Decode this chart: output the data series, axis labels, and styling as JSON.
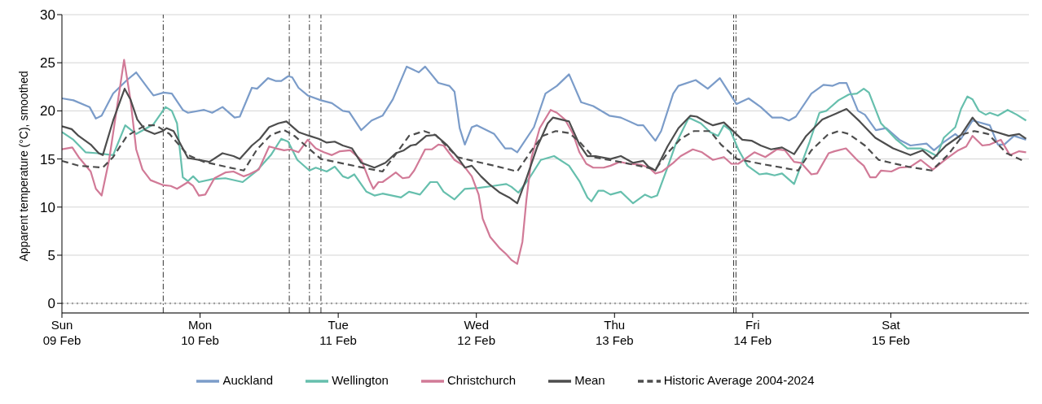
{
  "chart_data": {
    "type": "line",
    "ylabel": "Apparent temperature (°C), smoothed",
    "xlim": [
      "--02-09T00:00",
      "--02-16T00:00"
    ],
    "xticks": [
      {
        "value": "--02-09T00:00",
        "label": "Sun\n09 Feb"
      },
      {
        "value": "--02-10T00:00",
        "label": "Mon\n10 Feb"
      },
      {
        "value": "--02-11T00:00",
        "label": "Tue\n11 Feb"
      },
      {
        "value": "--02-12T00:00",
        "label": "Wed\n12 Feb"
      },
      {
        "value": "--02-13T00:00",
        "label": "Thu\n13 Feb"
      },
      {
        "value": "--02-14T00:00",
        "label": "Fri\n14 Feb"
      },
      {
        "value": "--02-15T00:00",
        "label": "Sat\n15 Feb"
      }
    ],
    "ylim": [
      -1,
      30
    ],
    "yticks": [
      0,
      5,
      10,
      15,
      20,
      25,
      30
    ],
    "grid": "y",
    "legend": "bottom",
    "marker": "none",
    "line_style": "solid",
    "ref_lines": [
      {
        "axis": "x",
        "value": "--02-09T17:36",
        "color": "#333333",
        "line_style": "dashed"
      },
      {
        "axis": "x",
        "value": "--02-10T15:30",
        "color": "#333333",
        "line_style": "dashed"
      },
      {
        "axis": "x",
        "value": "--02-10T19:00",
        "color": "#333333",
        "line_style": "dashed"
      },
      {
        "axis": "x",
        "value": "--02-10T21:00",
        "color": "#333333",
        "line_style": "dashed"
      },
      {
        "axis": "x",
        "value": "--02-13T20:42",
        "color": "#333333",
        "line_style": "dashed"
      },
      {
        "axis": "x",
        "value": "--02-13T21:06",
        "color": "#333333",
        "line_style": "dashed"
      },
      {
        "axis": "y",
        "value": 0,
        "color": "#999999",
        "line_style": "dotted"
      }
    ],
    "series": [
      {
        "name": "Auckland",
        "color": "#7b9cc9",
        "x": [
          "--02-09T00:00",
          "--02-09T02:00",
          "--02-09T04:48",
          "--02-09T05:54",
          "--02-09T06:54",
          "--02-09T08:54",
          "--02-09T11:18",
          "--02-09T12:54",
          "--02-09T15:00",
          "--02-09T15:54",
          "--02-09T17:42",
          "--02-09T19:06",
          "--02-09T21:00",
          "--02-09T21:54",
          "--02-10T00:42",
          "--02-10T02:06",
          "--02-10T03:54",
          "--02-10T06:00",
          "--02-10T06:54",
          "--02-10T09:00",
          "--02-10T09:54",
          "--02-10T11:48",
          "--02-10T13:12",
          "--02-10T14:06",
          "--02-10T15:18",
          "--02-10T16:00",
          "--02-10T17:06",
          "--02-10T18:42",
          "--02-10T21:00",
          "--02-10T22:54",
          "--02-11T00:48",
          "--02-11T01:54",
          "--02-11T04:00",
          "--02-11T05:48",
          "--02-11T07:42",
          "--02-11T09:30",
          "--02-11T11:54",
          "--02-11T14:00",
          "--02-11T15:06",
          "--02-11T17:24",
          "--02-11T19:18",
          "--02-11T20:12",
          "--02-11T21:06",
          "--02-11T22:00",
          "--02-11T23:12",
          "--02-12T00:06",
          "--02-12T03:06",
          "--02-12T05:00",
          "--02-12T06:06",
          "--02-12T07:06",
          "--02-12T10:00",
          "--02-12T12:00",
          "--02-12T14:00",
          "--02-12T16:06",
          "--02-12T18:12",
          "--02-12T20:18",
          "--02-12T23:06",
          "--02-13T01:06",
          "--02-13T04:06",
          "--02-13T05:00",
          "--02-13T07:06",
          "--02-13T08:06",
          "--02-13T10:12",
          "--02-13T11:06",
          "--02-13T14:06",
          "--02-13T16:12",
          "--02-13T18:18",
          "--02-13T21:12",
          "--02-13T23:18",
          "--02-14T01:24",
          "--02-14T03:24",
          "--02-14T05:06",
          "--02-14T06:18",
          "--02-14T07:30",
          "--02-14T10:12",
          "--02-14T12:18",
          "--02-14T13:54",
          "--02-14T15:06",
          "--02-14T16:18",
          "--02-14T18:18",
          "--02-14T19:30",
          "--02-14T21:24",
          "--02-14T23:12",
          "--02-15T01:30",
          "--02-15T03:24",
          "--02-15T06:12",
          "--02-15T07:30",
          "--02-15T09:06",
          "--02-15T11:12",
          "--02-15T12:12",
          "--02-15T14:12",
          "--02-15T17:12",
          "--02-15T18:36",
          "--02-15T19:42",
          "--02-15T21:24",
          "--02-15T23:30"
        ],
        "values": [
          21.3,
          21.1,
          20.4,
          19.2,
          19.5,
          21.8,
          23.2,
          24.0,
          22.3,
          21.6,
          21.9,
          21.8,
          20.1,
          19.8,
          20.1,
          19.8,
          20.4,
          19.3,
          19.4,
          22.4,
          22.3,
          23.4,
          23.1,
          23.1,
          23.6,
          23.5,
          22.4,
          21.6,
          21.1,
          20.8,
          20.0,
          19.9,
          18.0,
          19.0,
          19.5,
          21.2,
          24.6,
          24.0,
          24.6,
          22.9,
          22.6,
          22.0,
          18.2,
          16.5,
          18.3,
          18.5,
          17.6,
          16.1,
          16.1,
          15.7,
          18.3,
          21.8,
          22.6,
          23.8,
          20.9,
          20.5,
          19.5,
          19.3,
          18.5,
          18.5,
          16.9,
          17.9,
          21.8,
          22.6,
          23.2,
          22.3,
          23.4,
          20.7,
          21.3,
          20.4,
          19.3,
          19.3,
          19.0,
          19.4,
          21.8,
          22.7,
          22.6,
          22.9,
          22.9,
          20.0,
          19.6,
          18.0,
          18.2,
          17.0,
          16.4,
          16.6,
          15.9,
          16.7,
          17.6,
          17.1,
          19.0,
          18.5,
          16.5,
          16.5,
          17.4,
          17.0
        ]
      },
      {
        "name": "Wellington",
        "color": "#66bfad",
        "x": [
          "--02-09T00:00",
          "--02-09T02:00",
          "--02-09T04:06",
          "--02-09T06:12",
          "--02-09T08:54",
          "--02-09T11:00",
          "--02-09T12:54",
          "--02-09T15:54",
          "--02-09T18:00",
          "--02-09T19:06",
          "--02-09T20:00",
          "--02-09T21:00",
          "--02-09T21:54",
          "--02-09T22:48",
          "--02-09T23:48",
          "--02-10T02:06",
          "--02-10T04:24",
          "--02-10T07:24",
          "--02-10T09:54",
          "--02-10T12:18",
          "--02-10T14:06",
          "--02-10T15:18",
          "--02-10T16:54",
          "--02-10T19:00",
          "--02-10T20:06",
          "--02-10T22:00",
          "--02-10T23:24",
          "--02-11T00:48",
          "--02-11T01:42",
          "--02-11T02:48",
          "--02-11T04:54",
          "--02-11T06:18",
          "--02-11T07:42",
          "--02-11T10:54",
          "--02-11T12:18",
          "--02-11T14:12",
          "--02-11T16:00",
          "--02-11T17:12",
          "--02-11T18:18",
          "--02-11T20:12",
          "--02-11T22:00",
          "--02-12T00:24",
          "--02-12T02:54",
          "--02-12T05:12",
          "--02-12T06:06",
          "--02-12T07:18",
          "--02-12T09:12",
          "--02-12T11:12",
          "--02-12T13:30",
          "--02-12T16:06",
          "--02-12T17:54",
          "--02-12T19:18",
          "--02-12T20:00",
          "--02-12T21:12",
          "--02-12T22:06",
          "--02-12T23:18",
          "--02-13T01:06",
          "--02-13T03:12",
          "--02-13T05:18",
          "--02-13T06:24",
          "--02-13T07:24",
          "--02-13T09:12",
          "--02-13T10:36",
          "--02-13T12:54",
          "--02-13T15:00",
          "--02-13T16:36",
          "--02-13T18:00",
          "--02-13T19:00",
          "--02-13T20:06",
          "--02-13T21:30",
          "--02-13T23:06",
          "--02-14T01:12",
          "--02-14T02:24",
          "--02-14T03:48",
          "--02-14T05:06",
          "--02-14T07:12",
          "--02-14T09:54",
          "--02-14T11:36",
          "--02-14T12:48",
          "--02-14T14:54",
          "--02-14T16:42",
          "--02-14T18:06",
          "--02-14T19:18",
          "--02-14T20:12",
          "--02-14T22:18",
          "--02-15T01:00",
          "--02-15T02:54",
          "--02-15T05:12",
          "--02-15T06:12",
          "--02-15T08:00",
          "--02-15T09:12",
          "--02-15T11:12",
          "--02-15T12:12",
          "--02-15T13:18",
          "--02-15T14:12",
          "--02-15T15:18",
          "--02-15T16:30",
          "--02-15T17:12",
          "--02-15T18:36",
          "--02-15T20:18",
          "--02-15T21:54",
          "--02-15T23:30"
        ],
        "values": [
          17.8,
          17.0,
          15.7,
          15.6,
          15.4,
          18.5,
          17.6,
          18.6,
          20.4,
          20.0,
          18.7,
          13.1,
          12.7,
          13.2,
          12.6,
          12.9,
          13.0,
          12.6,
          13.8,
          15.4,
          17.1,
          16.8,
          14.9,
          13.8,
          14.1,
          13.7,
          14.2,
          13.2,
          13.0,
          13.4,
          11.6,
          11.2,
          11.4,
          11.0,
          11.6,
          11.3,
          12.6,
          12.6,
          11.6,
          10.8,
          11.9,
          12.0,
          12.2,
          12.4,
          12.1,
          11.5,
          13.0,
          14.9,
          15.3,
          14.3,
          12.7,
          11.0,
          10.6,
          11.7,
          11.7,
          11.3,
          11.6,
          10.4,
          11.3,
          11.0,
          11.2,
          14.1,
          16.5,
          19.3,
          18.7,
          17.8,
          17.4,
          18.5,
          18.0,
          16.0,
          14.3,
          13.4,
          13.5,
          13.3,
          13.5,
          12.4,
          16.8,
          19.8,
          20.0,
          21.1,
          21.7,
          21.8,
          22.3,
          21.9,
          18.7,
          17.0,
          16.1,
          16.1,
          15.9,
          15.3,
          17.2,
          18.3,
          20.2,
          21.5,
          21.2,
          20.0,
          19.6,
          19.8,
          19.5,
          20.1,
          19.6,
          19.0
        ]
      },
      {
        "name": "Christchurch",
        "color": "#d17a97",
        "x": [
          "--02-09T00:00",
          "--02-09T01:48",
          "--02-09T02:54",
          "--02-09T05:00",
          "--02-09T05:54",
          "--02-09T06:54",
          "--02-09T08:12",
          "--02-09T10:48",
          "--02-09T11:54",
          "--02-09T12:54",
          "--02-09T14:00",
          "--02-09T15:24",
          "--02-09T17:30",
          "--02-09T18:54",
          "--02-09T20:00",
          "--02-09T21:54",
          "--02-09T22:48",
          "--02-09T23:48",
          "--02-10T00:54",
          "--02-10T02:30",
          "--02-10T04:24",
          "--02-10T05:48",
          "--02-10T07:36",
          "--02-10T08:30",
          "--02-10T10:12",
          "--02-10T12:00",
          "--02-10T13:12",
          "--02-10T14:36",
          "--02-10T15:42",
          "--02-10T17:06",
          "--02-10T18:42",
          "--02-10T20:06",
          "--02-10T21:30",
          "--02-10T22:54",
          "--02-11T00:18",
          "--02-11T02:06",
          "--02-11T04:00",
          "--02-11T05:24",
          "--02-11T06:06",
          "--02-11T07:00",
          "--02-11T07:42",
          "--02-11T09:06",
          "--02-11T10:00",
          "--02-11T11:12",
          "--02-11T12:18",
          "--02-11T13:12",
          "--02-11T15:06",
          "--02-11T16:18",
          "--02-11T17:24",
          "--02-11T18:18",
          "--02-11T20:12",
          "--02-11T21:48",
          "--02-11T23:12",
          "--02-12T00:24",
          "--02-12T01:06",
          "--02-12T02:24",
          "--02-12T04:06",
          "--02-12T05:12",
          "--02-12T06:06",
          "--02-12T07:06",
          "--02-12T08:00",
          "--02-12T08:42",
          "--02-12T09:36",
          "--02-12T11:00",
          "--02-12T12:54",
          "--02-12T14:00",
          "--02-12T15:24",
          "--02-12T16:48",
          "--02-12T17:54",
          "--02-12T19:06",
          "--02-12T20:18",
          "--02-12T22:06",
          "--02-12T23:18",
          "--02-13T00:54",
          "--02-13T02:30",
          "--02-13T04:36",
          "--02-13T06:00",
          "--02-13T07:06",
          "--02-13T08:18",
          "--02-13T10:12",
          "--02-13T11:30",
          "--02-13T13:36",
          "--02-13T15:12",
          "--02-13T17:06",
          "--02-13T19:00",
          "--02-13T20:18",
          "--02-13T21:30",
          "--02-14T00:18",
          "--02-14T02:12",
          "--02-14T04:12",
          "--02-14T05:36",
          "--02-14T07:12",
          "--02-14T08:24",
          "--02-14T10:12",
          "--02-14T11:12",
          "--02-14T13:12",
          "--02-14T14:12",
          "--02-14T16:12",
          "--02-14T18:18",
          "--02-14T19:18",
          "--02-14T20:24",
          "--02-14T21:24",
          "--02-14T22:18",
          "--02-15T00:06",
          "--02-15T01:30",
          "--02-15T03:24",
          "--02-15T05:12",
          "--02-15T07:18",
          "--02-15T09:36",
          "--02-15T11:42",
          "--02-15T13:06",
          "--02-15T14:12",
          "--02-15T15:54",
          "--02-15T17:12",
          "--02-15T19:06",
          "--02-15T20:42",
          "--02-15T22:18",
          "--02-15T23:30"
        ],
        "values": [
          16.0,
          16.2,
          15.2,
          13.7,
          11.9,
          11.2,
          14.9,
          25.3,
          21.2,
          16.0,
          13.9,
          12.8,
          12.3,
          12.2,
          11.9,
          12.6,
          12.2,
          11.2,
          11.3,
          13.0,
          13.6,
          13.7,
          13.2,
          13.4,
          13.9,
          16.3,
          16.1,
          15.9,
          16.0,
          15.7,
          17.0,
          16.1,
          15.7,
          15.4,
          15.8,
          15.9,
          14.9,
          12.8,
          11.9,
          12.6,
          12.6,
          13.2,
          13.6,
          13.0,
          13.1,
          13.8,
          16.0,
          16.0,
          16.5,
          16.4,
          14.9,
          14.3,
          13.2,
          11.3,
          8.8,
          6.9,
          5.7,
          5.1,
          4.5,
          4.1,
          6.4,
          10.8,
          15.2,
          18.2,
          20.1,
          19.8,
          19.1,
          17.6,
          15.7,
          14.5,
          14.1,
          14.1,
          14.3,
          14.7,
          14.5,
          14.4,
          14.1,
          13.5,
          13.7,
          14.6,
          15.3,
          16.0,
          15.7,
          14.9,
          15.2,
          14.5,
          14.5,
          15.7,
          15.2,
          16.0,
          15.9,
          14.7,
          14.6,
          13.4,
          13.5,
          15.6,
          15.8,
          16.1,
          14.8,
          14.3,
          13.1,
          13.1,
          13.8,
          13.7,
          14.1,
          14.2,
          14.9,
          13.9,
          15.0,
          15.9,
          16.3,
          17.4,
          16.4,
          16.5,
          17.0,
          15.4,
          15.8,
          15.7
        ]
      },
      {
        "name": "Mean",
        "color": "#4d4d4d",
        "x": [
          "--02-09T00:00",
          "--02-09T01:42",
          "--02-09T02:54",
          "--02-09T05:00",
          "--02-09T06:24",
          "--02-09T07:06",
          "--02-09T08:54",
          "--02-09T10:54",
          "--02-09T11:54",
          "--02-09T13:06",
          "--02-09T14:30",
          "--02-09T16:06",
          "--02-09T17:30",
          "--02-09T18:12",
          "--02-09T19:24",
          "--02-09T21:54",
          "--02-09T23:48",
          "--02-10T01:36",
          "--02-10T03:54",
          "--02-10T05:48",
          "--02-10T06:54",
          "--02-10T09:00",
          "--02-10T10:24",
          "--02-10T12:00",
          "--02-10T13:36",
          "--02-10T15:00",
          "--02-10T17:06",
          "--02-10T19:00",
          "--02-10T20:36",
          "--02-10T22:00",
          "--02-10T23:24",
          "--02-11T00:48",
          "--02-11T02:24",
          "--02-11T04:00",
          "--02-11T06:18",
          "--02-11T08:12",
          "--02-11T10:00",
          "--02-11T11:24",
          "--02-11T12:36",
          "--02-11T13:30",
          "--02-11T15:18",
          "--02-11T16:54",
          "--02-11T18:48",
          "--02-11T20:42",
          "--02-11T22:00",
          "--02-11T23:12",
          "--02-12T00:48",
          "--02-12T02:12",
          "--02-12T04:06",
          "--02-12T05:42",
          "--02-12T07:06",
          "--02-12T08:42",
          "--02-12T10:36",
          "--02-12T12:24",
          "--02-12T13:18",
          "--02-12T16:06",
          "--02-12T17:54",
          "--02-12T19:18",
          "--02-12T20:42",
          "--02-12T23:18",
          "--02-13T01:06",
          "--02-13T03:12",
          "--02-13T05:00",
          "--02-13T05:54",
          "--02-13T07:06",
          "--02-13T09:12",
          "--02-13T11:06",
          "--02-13T13:12",
          "--02-13T14:18",
          "--02-13T15:42",
          "--02-13T17:06",
          "--02-13T19:00",
          "--02-13T22:12",
          "--02-13T23:48",
          "--02-14T01:24",
          "--02-14T03:12",
          "--02-14T05:06",
          "--02-14T07:12",
          "--02-14T09:18",
          "--02-14T12:06",
          "--02-14T14:24",
          "--02-14T16:18",
          "--02-14T18:36",
          "--02-14T21:18",
          "--02-15T00:24",
          "--02-15T03:24",
          "--02-15T05:30",
          "--02-15T07:18",
          "--02-15T09:36",
          "--02-15T12:12",
          "--02-15T14:12",
          "--02-15T15:18",
          "--02-15T17:12",
          "--02-15T20:30",
          "--02-15T22:18",
          "--02-15T23:30"
        ],
        "values": [
          18.4,
          18.1,
          17.4,
          16.5,
          15.6,
          15.4,
          19.0,
          22.3,
          21.2,
          19.1,
          18.0,
          17.6,
          17.9,
          18.2,
          17.9,
          15.1,
          14.9,
          14.7,
          15.6,
          15.3,
          15.0,
          16.4,
          17.1,
          18.3,
          18.7,
          18.9,
          17.8,
          17.4,
          17.1,
          16.7,
          16.8,
          16.4,
          16.1,
          14.6,
          14.1,
          14.6,
          15.6,
          15.9,
          16.4,
          16.5,
          17.4,
          17.5,
          16.5,
          15.2,
          14.1,
          14.3,
          13.2,
          12.4,
          11.5,
          11.0,
          10.4,
          13.0,
          16.3,
          18.7,
          19.3,
          18.9,
          16.5,
          15.3,
          15.3,
          15.0,
          15.3,
          14.6,
          14.8,
          14.2,
          13.8,
          16.3,
          18.2,
          19.5,
          19.4,
          18.9,
          18.5,
          18.8,
          17.0,
          16.9,
          16.4,
          16.0,
          16.2,
          15.5,
          17.4,
          19.1,
          19.7,
          20.2,
          18.9,
          17.2,
          16.1,
          15.4,
          15.9,
          15.0,
          16.4,
          17.5,
          19.3,
          18.5,
          18.0,
          17.4,
          17.6,
          17.1
        ]
      },
      {
        "name": "Historic Average 2004-2024",
        "color": "#4d4d4d",
        "line_style": "dashed",
        "x": [
          "--02-09T00:00",
          "--02-09T02:54",
          "--02-09T07:06",
          "--02-09T08:54",
          "--02-09T11:18",
          "--02-09T14:30",
          "--02-09T16:18",
          "--02-09T18:42",
          "--02-09T21:54",
          "--02-10T00:42",
          "--02-10T04:24",
          "--02-10T07:36",
          "--02-10T09:54",
          "--02-10T12:18",
          "--02-10T14:36",
          "--02-10T16:24",
          "--02-10T18:18",
          "--02-10T21:00",
          "--02-11T00:18",
          "--02-11T03:30",
          "--02-11T07:42",
          "--02-11T10:00",
          "--02-11T12:18",
          "--02-11T14:54",
          "--02-11T16:54",
          "--02-11T20:42",
          "--02-11T23:24",
          "--02-12T03:06",
          "--02-12T07:06",
          "--02-12T09:36",
          "--02-12T11:30",
          "--02-12T13:48",
          "--02-12T16:06",
          "--02-12T17:54",
          "--02-12T20:18",
          "--02-13T00:54",
          "--02-13T05:00",
          "--02-13T07:06",
          "--02-13T09:12",
          "--02-13T11:30",
          "--02-13T13:48",
          "--02-13T16:36",
          "--02-13T18:30",
          "--02-13T21:18",
          "--02-14T01:24",
          "--02-14T07:54",
          "--02-14T10:12",
          "--02-14T13:00",
          "--02-14T14:54",
          "--02-14T16:42",
          "--02-14T19:30",
          "--02-14T21:54",
          "--02-15T03:00",
          "--02-15T07:06",
          "--02-15T09:54",
          "--02-15T12:42",
          "--02-15T14:30",
          "--02-15T16:54",
          "--02-15T20:06",
          "--02-15T23:06"
        ],
        "values": [
          14.8,
          14.3,
          14.1,
          15.2,
          17.4,
          18.5,
          18.5,
          17.6,
          15.4,
          14.7,
          14.2,
          13.8,
          16.0,
          17.5,
          18.0,
          17.4,
          16.4,
          15.0,
          14.6,
          14.2,
          13.7,
          15.5,
          17.4,
          17.9,
          17.5,
          15.2,
          14.8,
          14.3,
          13.7,
          15.9,
          17.4,
          17.9,
          17.7,
          16.8,
          15.2,
          14.7,
          14.2,
          13.9,
          15.6,
          17.1,
          17.9,
          17.9,
          16.5,
          15.0,
          14.5,
          13.8,
          15.9,
          17.5,
          17.9,
          17.6,
          16.4,
          14.9,
          14.2,
          13.8,
          15.4,
          17.6,
          17.9,
          17.6,
          15.6,
          14.8
        ]
      }
    ]
  }
}
